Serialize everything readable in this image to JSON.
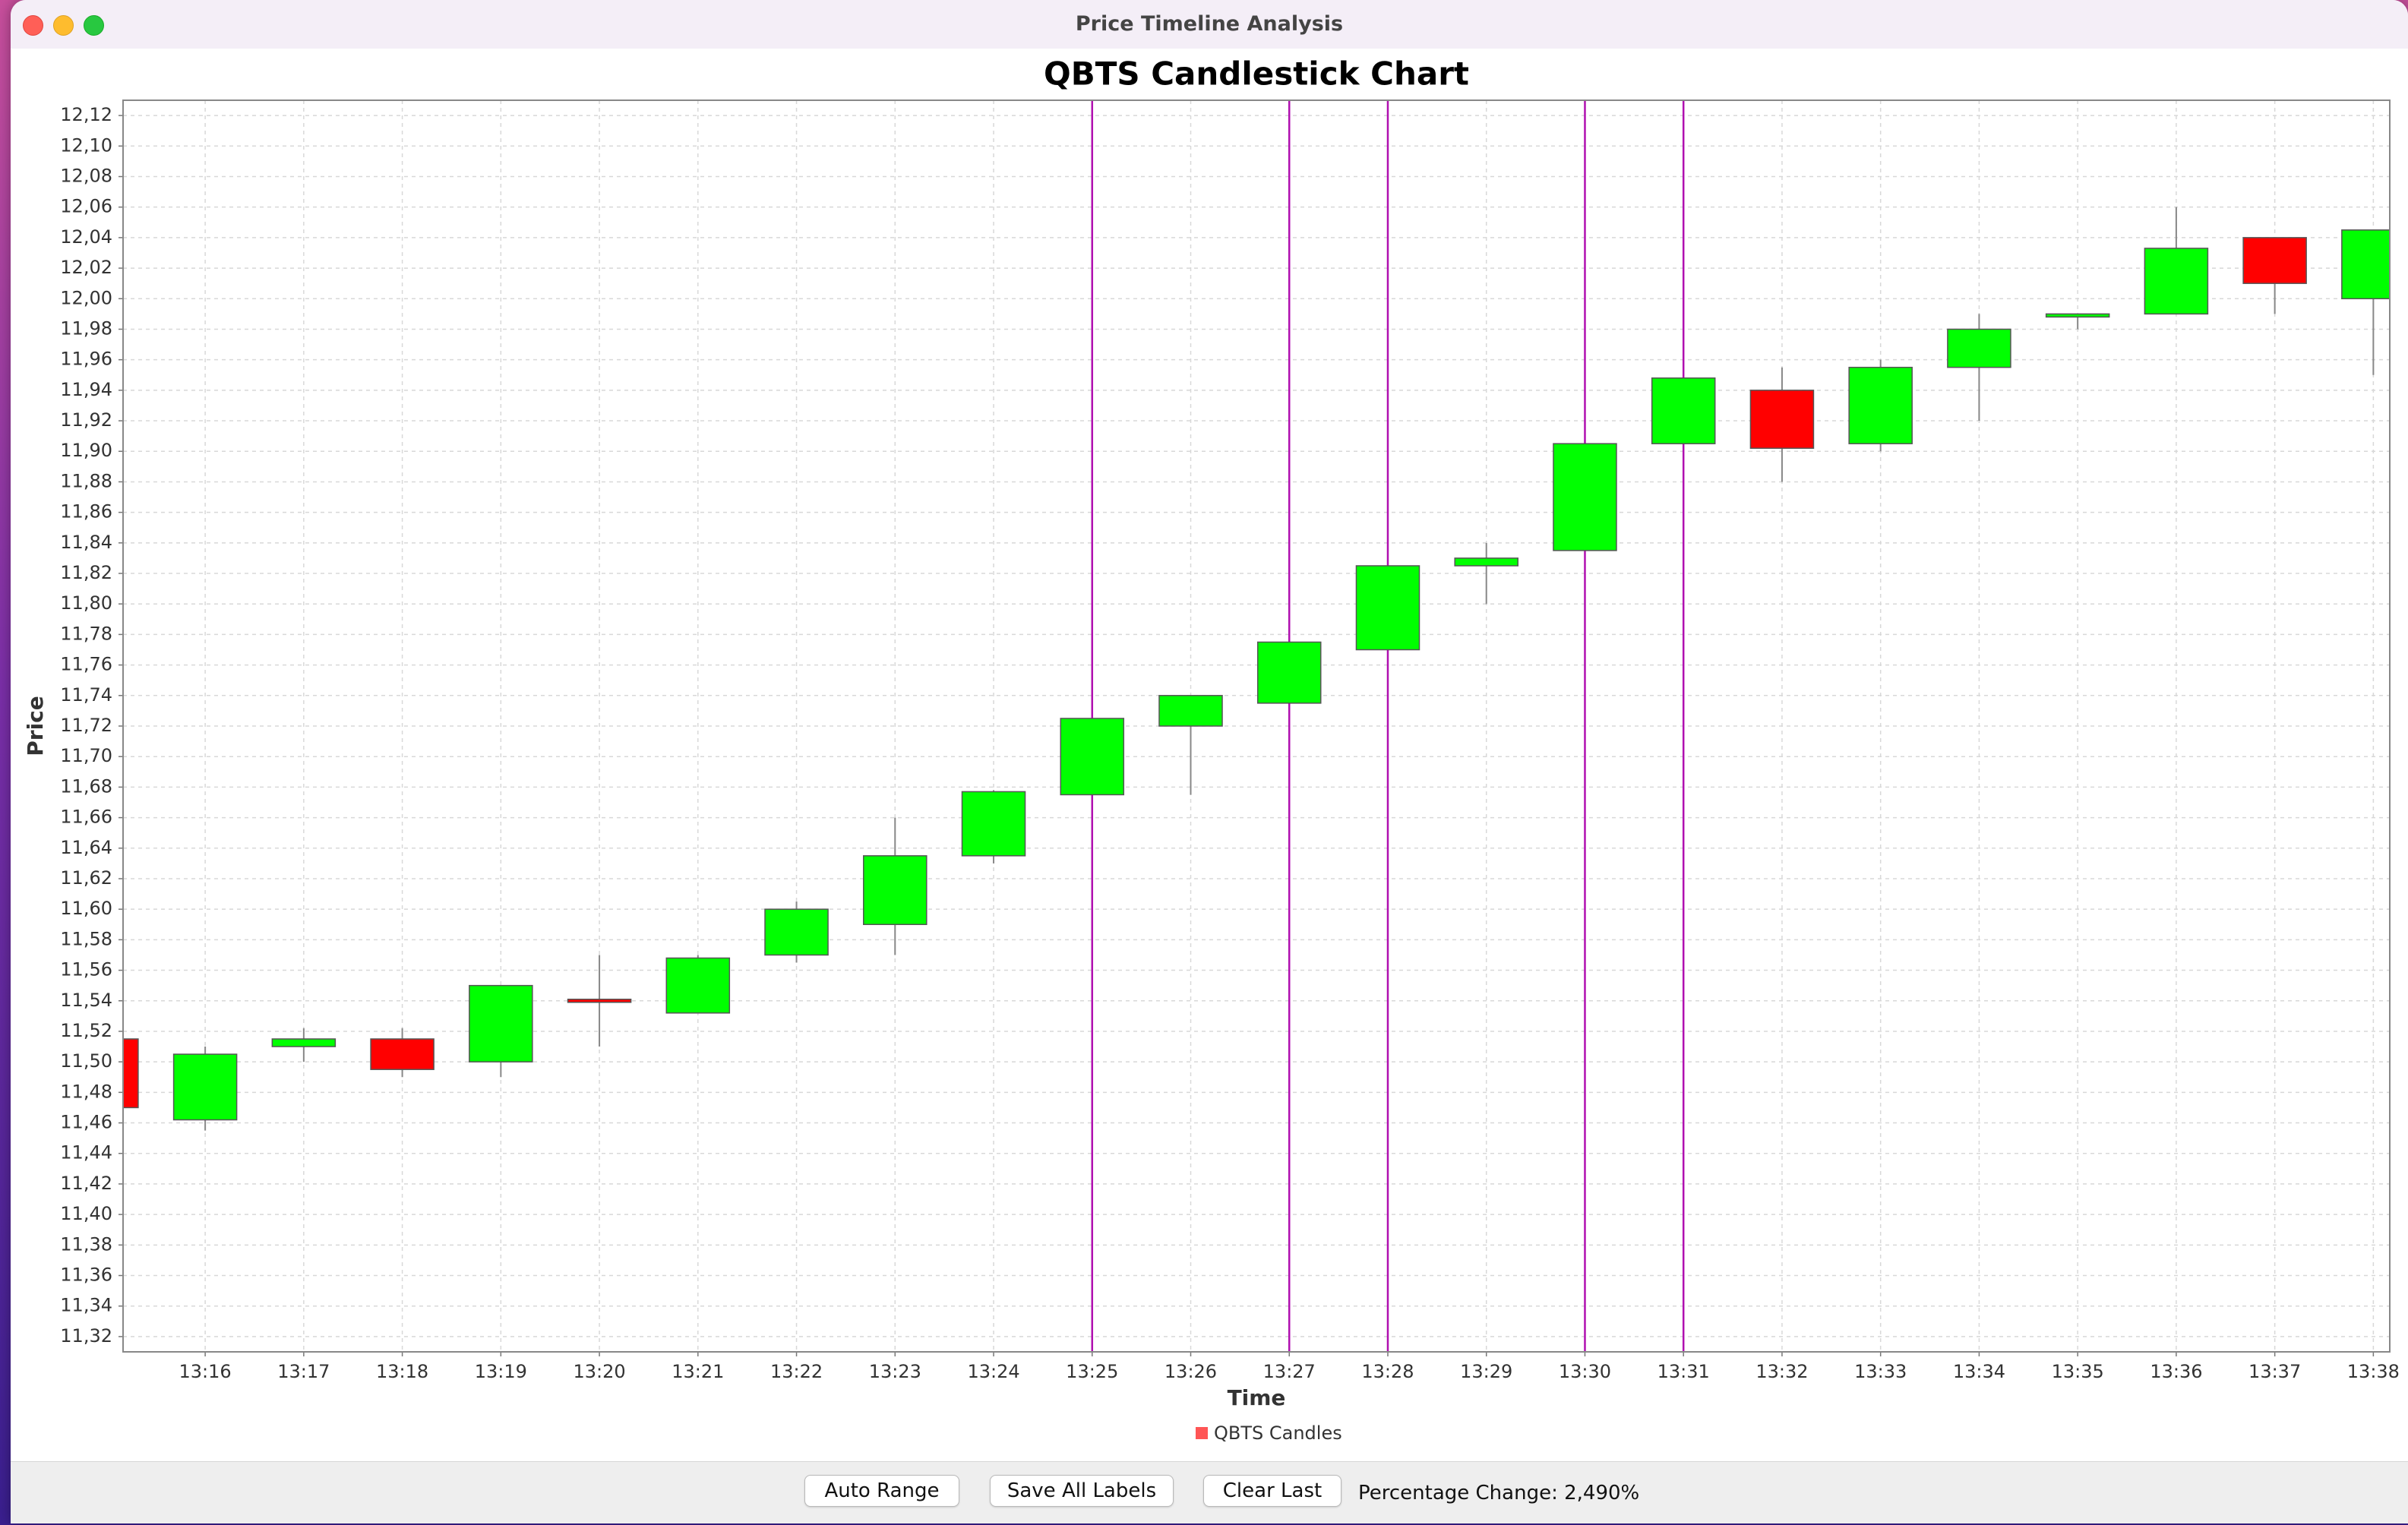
{
  "window": {
    "title": "Price Timeline Analysis"
  },
  "toolbar": {
    "auto_range_label": "Auto Range",
    "save_all_labels_label": "Save All Labels",
    "clear_last_label": "Clear Last",
    "percentage_change_text": "Percentage Change: 2,490%"
  },
  "colors": {
    "up": "#00ff00",
    "down": "#ff0000",
    "marker": "#b010b0",
    "legend": "#ff5555"
  },
  "chart_data": {
    "type": "candlestick",
    "title": "QBTS Candlestick Chart",
    "xlabel": "Time",
    "ylabel": "Price",
    "legend": "QBTS Candles",
    "legend_position": "bottom",
    "grid": true,
    "ylim": [
      11.31,
      12.13
    ],
    "xlim": [
      "13:15:10",
      "13:38:10"
    ],
    "y_ticks": [
      "11,32",
      "11,34",
      "11,36",
      "11,38",
      "11,40",
      "11,42",
      "11,44",
      "11,46",
      "11,48",
      "11,50",
      "11,52",
      "11,54",
      "11,56",
      "11,58",
      "11,60",
      "11,62",
      "11,64",
      "11,66",
      "11,68",
      "11,70",
      "11,72",
      "11,74",
      "11,76",
      "11,78",
      "11,80",
      "11,82",
      "11,84",
      "11,86",
      "11,88",
      "11,90",
      "11,92",
      "11,94",
      "11,96",
      "11,98",
      "12,00",
      "12,02",
      "12,04",
      "12,06",
      "12,08",
      "12,10",
      "12,12"
    ],
    "x_ticks": [
      "13:16",
      "13:17",
      "13:18",
      "13:19",
      "13:20",
      "13:21",
      "13:22",
      "13:23",
      "13:24",
      "13:25",
      "13:26",
      "13:27",
      "13:28",
      "13:29",
      "13:30",
      "13:31",
      "13:32",
      "13:33",
      "13:34",
      "13:35",
      "13:36",
      "13:37",
      "13:38"
    ],
    "vertical_markers": [
      "13:25",
      "13:27",
      "13:28",
      "13:30",
      "13:31"
    ],
    "candles": [
      {
        "time": "13:15",
        "open": 11.515,
        "high": 11.515,
        "low": 11.47,
        "close": 11.47
      },
      {
        "time": "13:16",
        "open": 11.462,
        "high": 11.51,
        "low": 11.455,
        "close": 11.505
      },
      {
        "time": "13:17",
        "open": 11.51,
        "high": 11.522,
        "low": 11.5,
        "close": 11.515
      },
      {
        "time": "13:18",
        "open": 11.515,
        "high": 11.522,
        "low": 11.49,
        "close": 11.495
      },
      {
        "time": "13:19",
        "open": 11.5,
        "high": 11.55,
        "low": 11.49,
        "close": 11.55
      },
      {
        "time": "13:20",
        "open": 11.541,
        "high": 11.57,
        "low": 11.51,
        "close": 11.539
      },
      {
        "time": "13:21",
        "open": 11.532,
        "high": 11.57,
        "low": 11.532,
        "close": 11.568
      },
      {
        "time": "13:22",
        "open": 11.57,
        "high": 11.605,
        "low": 11.565,
        "close": 11.6
      },
      {
        "time": "13:23",
        "open": 11.59,
        "high": 11.66,
        "low": 11.57,
        "close": 11.635
      },
      {
        "time": "13:24",
        "open": 11.635,
        "high": 11.678,
        "low": 11.63,
        "close": 11.677
      },
      {
        "time": "13:25",
        "open": 11.675,
        "high": 11.725,
        "low": 11.675,
        "close": 11.725
      },
      {
        "time": "13:26",
        "open": 11.72,
        "high": 11.74,
        "low": 11.675,
        "close": 11.74
      },
      {
        "time": "13:27",
        "open": 11.735,
        "high": 11.775,
        "low": 11.735,
        "close": 11.775
      },
      {
        "time": "13:28",
        "open": 11.77,
        "high": 11.825,
        "low": 11.77,
        "close": 11.825
      },
      {
        "time": "13:29",
        "open": 11.825,
        "high": 11.84,
        "low": 11.8,
        "close": 11.83
      },
      {
        "time": "13:30",
        "open": 11.835,
        "high": 11.905,
        "low": 11.835,
        "close": 11.905
      },
      {
        "time": "13:31",
        "open": 11.905,
        "high": 11.948,
        "low": 11.905,
        "close": 11.948
      },
      {
        "time": "13:32",
        "open": 11.94,
        "high": 11.955,
        "low": 11.88,
        "close": 11.902
      },
      {
        "time": "13:33",
        "open": 11.905,
        "high": 11.96,
        "low": 11.9,
        "close": 11.955
      },
      {
        "time": "13:34",
        "open": 11.955,
        "high": 11.99,
        "low": 11.92,
        "close": 11.98
      },
      {
        "time": "13:35",
        "open": 11.988,
        "high": 11.99,
        "low": 11.98,
        "close": 11.99
      },
      {
        "time": "13:36",
        "open": 11.99,
        "high": 12.06,
        "low": 11.99,
        "close": 12.033
      },
      {
        "time": "13:37",
        "open": 12.04,
        "high": 12.04,
        "low": 11.99,
        "close": 12.01
      },
      {
        "time": "13:38",
        "open": 12.0,
        "high": 12.045,
        "low": 11.95,
        "close": 12.045
      }
    ]
  }
}
